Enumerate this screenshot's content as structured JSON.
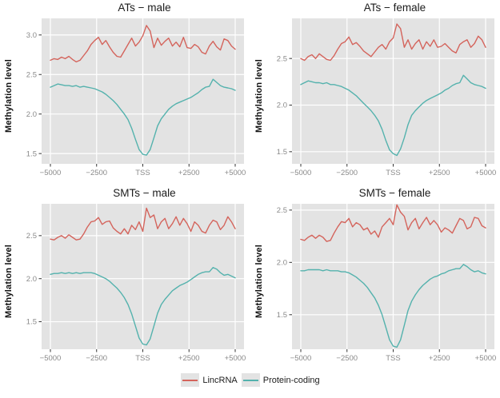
{
  "colors": {
    "panel_bg": "#e3e3e3",
    "grid": "#ffffff",
    "tick_text": "#8a8a8a",
    "tick_mark": "#333333",
    "lincrna": "#d4645c",
    "protein_coding": "#54b2ad"
  },
  "legend": {
    "items": [
      {
        "label": "LincRNA",
        "color": "#d4645c"
      },
      {
        "label": "Protein-coding",
        "color": "#54b2ad"
      }
    ]
  },
  "chart_data": {
    "type": "line",
    "x_axis": {
      "range": [
        -5000,
        5000
      ],
      "ticks": [
        {
          "pos": -5000,
          "label": "−5000"
        },
        {
          "pos": -2500,
          "label": "−2500"
        },
        {
          "pos": 0,
          "label": "TSS"
        },
        {
          "pos": 2500,
          "label": "+2500"
        },
        {
          "pos": 5000,
          "label": "+5000"
        }
      ]
    },
    "x_step": 200,
    "x_start": -5000,
    "panels": [
      {
        "title": "ATs − male",
        "ylabel": "Methylation level",
        "ylim": [
          1.37,
          3.21
        ],
        "yticks": [
          1.5,
          2.0,
          2.5,
          3.0
        ],
        "series": [
          {
            "name": "LincRNA",
            "color": "#d4645c",
            "values": [
              2.68,
              2.7,
              2.69,
              2.72,
              2.7,
              2.73,
              2.69,
              2.66,
              2.68,
              2.74,
              2.8,
              2.88,
              2.93,
              2.97,
              2.88,
              2.93,
              2.85,
              2.78,
              2.73,
              2.72,
              2.8,
              2.88,
              2.96,
              2.86,
              2.91,
              2.99,
              3.12,
              3.05,
              2.84,
              2.96,
              2.87,
              2.92,
              2.96,
              2.86,
              2.91,
              2.85,
              2.97,
              2.84,
              2.83,
              2.88,
              2.85,
              2.78,
              2.76,
              2.86,
              2.92,
              2.85,
              2.81,
              2.95,
              2.93,
              2.86,
              2.82
            ]
          },
          {
            "name": "Protein-coding",
            "color": "#54b2ad",
            "values": [
              2.34,
              2.36,
              2.38,
              2.37,
              2.36,
              2.36,
              2.35,
              2.36,
              2.34,
              2.35,
              2.34,
              2.33,
              2.32,
              2.3,
              2.28,
              2.25,
              2.21,
              2.17,
              2.12,
              2.06,
              2.0,
              1.93,
              1.82,
              1.68,
              1.55,
              1.49,
              1.48,
              1.55,
              1.7,
              1.85,
              1.94,
              2.0,
              2.06,
              2.1,
              2.13,
              2.15,
              2.17,
              2.19,
              2.21,
              2.24,
              2.27,
              2.31,
              2.34,
              2.35,
              2.44,
              2.4,
              2.36,
              2.34,
              2.33,
              2.32,
              2.3
            ]
          }
        ]
      },
      {
        "title": "ATs − female",
        "ylabel": "Methylation level",
        "ylim": [
          1.37,
          2.93
        ],
        "yticks": [
          1.5,
          2.0,
          2.5
        ],
        "series": [
          {
            "name": "LincRNA",
            "color": "#d4645c",
            "values": [
              2.5,
              2.48,
              2.52,
              2.54,
              2.5,
              2.55,
              2.52,
              2.49,
              2.48,
              2.53,
              2.6,
              2.66,
              2.68,
              2.73,
              2.65,
              2.67,
              2.63,
              2.58,
              2.55,
              2.52,
              2.57,
              2.62,
              2.65,
              2.6,
              2.68,
              2.72,
              2.87,
              2.82,
              2.62,
              2.7,
              2.6,
              2.66,
              2.7,
              2.6,
              2.68,
              2.63,
              2.7,
              2.62,
              2.63,
              2.66,
              2.62,
              2.58,
              2.56,
              2.65,
              2.68,
              2.7,
              2.62,
              2.66,
              2.74,
              2.7,
              2.62
            ]
          },
          {
            "name": "Protein-coding",
            "color": "#54b2ad",
            "values": [
              2.22,
              2.24,
              2.26,
              2.25,
              2.24,
              2.24,
              2.23,
              2.24,
              2.22,
              2.22,
              2.21,
              2.2,
              2.18,
              2.16,
              2.13,
              2.1,
              2.06,
              2.02,
              1.98,
              1.94,
              1.89,
              1.83,
              1.74,
              1.62,
              1.52,
              1.48,
              1.46,
              1.53,
              1.65,
              1.79,
              1.89,
              1.94,
              1.98,
              2.02,
              2.05,
              2.07,
              2.09,
              2.11,
              2.13,
              2.16,
              2.18,
              2.21,
              2.23,
              2.24,
              2.32,
              2.28,
              2.24,
              2.22,
              2.21,
              2.2,
              2.18
            ]
          }
        ]
      },
      {
        "title": "SMTs − male",
        "ylabel": "Methylation level",
        "ylim": [
          1.18,
          2.87
        ],
        "yticks": [
          1.5,
          2.0,
          2.5
        ],
        "series": [
          {
            "name": "LincRNA",
            "color": "#d4645c",
            "values": [
              2.46,
              2.45,
              2.48,
              2.5,
              2.47,
              2.51,
              2.48,
              2.45,
              2.46,
              2.52,
              2.6,
              2.66,
              2.67,
              2.71,
              2.63,
              2.66,
              2.67,
              2.59,
              2.55,
              2.52,
              2.58,
              2.52,
              2.62,
              2.57,
              2.66,
              2.55,
              2.82,
              2.71,
              2.74,
              2.58,
              2.66,
              2.7,
              2.58,
              2.64,
              2.72,
              2.62,
              2.7,
              2.64,
              2.55,
              2.66,
              2.62,
              2.55,
              2.53,
              2.62,
              2.68,
              2.66,
              2.57,
              2.62,
              2.72,
              2.66,
              2.58
            ]
          },
          {
            "name": "Protein-coding",
            "color": "#54b2ad",
            "values": [
              2.05,
              2.06,
              2.06,
              2.07,
              2.06,
              2.07,
              2.06,
              2.07,
              2.06,
              2.07,
              2.07,
              2.07,
              2.06,
              2.04,
              2.02,
              2.0,
              1.97,
              1.93,
              1.89,
              1.84,
              1.78,
              1.7,
              1.59,
              1.45,
              1.31,
              1.24,
              1.23,
              1.3,
              1.45,
              1.6,
              1.7,
              1.76,
              1.81,
              1.86,
              1.89,
              1.92,
              1.94,
              1.96,
              1.99,
              2.02,
              2.05,
              2.07,
              2.08,
              2.08,
              2.13,
              2.11,
              2.07,
              2.04,
              2.05,
              2.03,
              2.01
            ]
          }
        ]
      },
      {
        "title": "SMTs − female",
        "ylabel": "Methylation level",
        "ylim": [
          1.17,
          2.56
        ],
        "yticks": [
          1.5,
          2.0,
          2.5
        ],
        "series": [
          {
            "name": "LincRNA",
            "color": "#d4645c",
            "values": [
              2.22,
              2.21,
              2.24,
              2.26,
              2.23,
              2.26,
              2.24,
              2.2,
              2.21,
              2.28,
              2.34,
              2.39,
              2.38,
              2.42,
              2.34,
              2.38,
              2.36,
              2.31,
              2.33,
              2.27,
              2.3,
              2.24,
              2.34,
              2.38,
              2.42,
              2.36,
              2.55,
              2.48,
              2.44,
              2.31,
              2.38,
              2.42,
              2.32,
              2.38,
              2.43,
              2.36,
              2.4,
              2.36,
              2.29,
              2.33,
              2.31,
              2.28,
              2.35,
              2.42,
              2.4,
              2.32,
              2.34,
              2.43,
              2.42,
              2.35,
              2.33
            ]
          },
          {
            "name": "Protein-coding",
            "color": "#54b2ad",
            "values": [
              1.92,
              1.92,
              1.93,
              1.93,
              1.93,
              1.93,
              1.92,
              1.93,
              1.92,
              1.92,
              1.92,
              1.91,
              1.91,
              1.9,
              1.88,
              1.86,
              1.83,
              1.8,
              1.76,
              1.71,
              1.66,
              1.59,
              1.5,
              1.38,
              1.26,
              1.2,
              1.19,
              1.26,
              1.4,
              1.54,
              1.63,
              1.69,
              1.74,
              1.78,
              1.81,
              1.84,
              1.86,
              1.87,
              1.89,
              1.9,
              1.92,
              1.93,
              1.94,
              1.94,
              1.98,
              1.96,
              1.93,
              1.91,
              1.92,
              1.9,
              1.89
            ]
          }
        ]
      }
    ]
  }
}
